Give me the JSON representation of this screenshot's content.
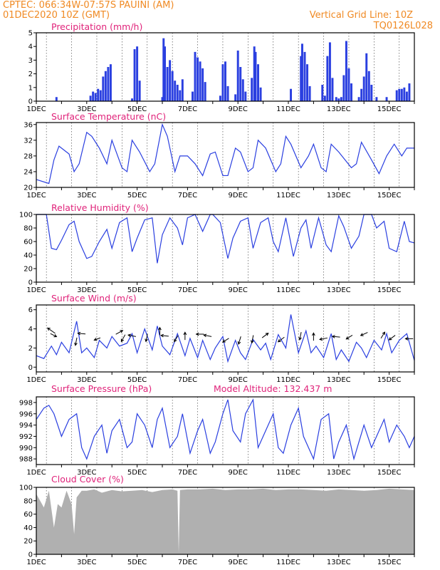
{
  "header": {
    "line1_left": "CPTEC:   066:34W-07:57S   PAUINI (AM)",
    "line2_left": "01DEC2020 10Z (GMT)",
    "line1_right": "Vertical Grid Line: 10Z",
    "line2_right": "TQ0126L028"
  },
  "colors": {
    "header": "#f08a24",
    "title": "#e0237a",
    "line": "#2a3fe0",
    "bar": "#2a3fe0",
    "cloud": "#b0b0b0"
  },
  "x_axis": {
    "labels": [
      "1DEC",
      "3DEC",
      "5DEC",
      "7DEC",
      "9DEC",
      "11DEC",
      "13DEC",
      "15DEC"
    ],
    "days": [
      1,
      3,
      5,
      7,
      9,
      11,
      13,
      15
    ],
    "range": [
      1,
      16
    ]
  },
  "chart_data": [
    {
      "type": "bar",
      "title": "Precipitation (mm/h)",
      "ylim": [
        0,
        5
      ],
      "yticks": [
        0,
        1,
        2,
        3,
        4,
        5
      ],
      "x": [
        1.8,
        3.15,
        3.25,
        3.35,
        3.45,
        3.55,
        3.65,
        3.75,
        3.85,
        3.95,
        4.8,
        4.9,
        5.0,
        5.1,
        6.0,
        6.05,
        6.1,
        6.2,
        6.3,
        6.4,
        6.5,
        6.6,
        6.7,
        6.8,
        7.2,
        7.3,
        7.4,
        7.5,
        7.6,
        7.7,
        8.3,
        8.4,
        8.5,
        8.6,
        8.9,
        9.0,
        9.1,
        9.2,
        9.3,
        9.55,
        9.65,
        9.7,
        9.8,
        9.9,
        11.1,
        11.5,
        11.55,
        11.65,
        11.75,
        11.85,
        12.35,
        12.45,
        12.55,
        12.65,
        12.75,
        12.9,
        13.0,
        13.1,
        13.2,
        13.3,
        13.4,
        13.5,
        13.8,
        13.9,
        14.0,
        14.1,
        14.2,
        14.3,
        14.5,
        14.9,
        15.3,
        15.4,
        15.5,
        15.6,
        15.7,
        15.8
      ],
      "values": [
        0.3,
        0.4,
        0.7,
        0.6,
        0.9,
        0.8,
        1.8,
        2.2,
        2.5,
        2.7,
        0.2,
        3.8,
        4.0,
        1.5,
        0.3,
        4.6,
        4.0,
        2.5,
        3.0,
        2.2,
        1.5,
        1.2,
        0.8,
        1.6,
        0.7,
        3.6,
        3.2,
        2.9,
        2.4,
        1.4,
        0.4,
        2.7,
        2.9,
        1.1,
        0.5,
        3.7,
        2.5,
        1.6,
        0.7,
        1.7,
        4.0,
        3.6,
        2.7,
        1.0,
        0.9,
        3.3,
        4.2,
        3.6,
        2.7,
        1.1,
        1.2,
        0.4,
        3.3,
        4.3,
        1.7,
        0.3,
        0.2,
        0.3,
        1.9,
        4.4,
        2.4,
        1.3,
        0.3,
        0.9,
        1.8,
        3.5,
        2.2,
        1.2,
        0.3,
        0.3,
        0.8,
        0.9,
        0.9,
        1.0,
        0.7,
        1.3
      ]
    },
    {
      "type": "line",
      "title": "Surface Temperature (nC)",
      "ylim": [
        20,
        36.5
      ],
      "yticks": [
        20,
        24,
        28,
        32,
        36
      ],
      "x": [
        1.0,
        1.4,
        1.5,
        1.7,
        1.9,
        2.3,
        2.5,
        2.7,
        3.0,
        3.2,
        3.5,
        3.8,
        4.0,
        4.4,
        4.6,
        4.8,
        5.1,
        5.5,
        5.7,
        6.0,
        6.2,
        6.5,
        6.7,
        7.0,
        7.3,
        7.6,
        7.9,
        8.1,
        8.4,
        8.6,
        8.9,
        9.1,
        9.4,
        9.6,
        9.8,
        10.1,
        10.5,
        10.7,
        10.9,
        11.1,
        11.5,
        11.8,
        12.0,
        12.3,
        12.5,
        12.7,
        13.0,
        13.5,
        13.7,
        13.9,
        14.3,
        14.6,
        14.9,
        15.2,
        15.5,
        15.7,
        16.0
      ],
      "values": [
        22,
        21.2,
        21,
        27,
        30.5,
        28.5,
        24,
        26,
        34,
        33,
        30,
        26,
        32,
        25,
        24,
        32,
        29,
        24,
        26,
        36,
        33,
        24,
        28,
        28,
        26,
        23,
        28.5,
        29,
        23,
        23,
        30,
        29,
        24,
        25,
        32,
        30,
        24,
        26,
        33,
        31,
        25,
        28,
        31,
        25,
        24,
        31,
        29,
        25,
        26,
        31.5,
        27,
        23.5,
        28,
        31,
        28,
        30,
        30
      ]
    },
    {
      "type": "line",
      "title": "Relative Humidity (%)",
      "ylim": [
        0,
        100
      ],
      "yticks": [
        0,
        20,
        40,
        60,
        80,
        100
      ],
      "x": [
        1.0,
        1.4,
        1.6,
        1.8,
        2.0,
        2.3,
        2.5,
        2.7,
        3.0,
        3.2,
        3.5,
        3.8,
        4.0,
        4.3,
        4.6,
        4.8,
        5.0,
        5.3,
        5.6,
        5.8,
        6.0,
        6.3,
        6.6,
        6.8,
        7.0,
        7.3,
        7.6,
        7.9,
        8.0,
        8.3,
        8.6,
        8.8,
        9.1,
        9.4,
        9.6,
        9.9,
        10.2,
        10.4,
        10.6,
        10.9,
        11.2,
        11.5,
        11.7,
        11.9,
        12.2,
        12.5,
        12.7,
        13.0,
        13.2,
        13.5,
        13.8,
        14.0,
        14.3,
        14.5,
        14.8,
        15.0,
        15.3,
        15.6,
        15.8,
        16.0
      ],
      "values": [
        100,
        100,
        50,
        48,
        62,
        85,
        90,
        60,
        35,
        38,
        60,
        78,
        50,
        88,
        95,
        45,
        65,
        92,
        95,
        28,
        70,
        95,
        80,
        55,
        95,
        100,
        75,
        100,
        100,
        88,
        35,
        65,
        90,
        95,
        50,
        88,
        95,
        60,
        45,
        95,
        38,
        80,
        92,
        50,
        95,
        55,
        45,
        98,
        82,
        50,
        68,
        100,
        100,
        80,
        90,
        50,
        45,
        90,
        60,
        58
      ]
    },
    {
      "type": "line",
      "title": "Surface Wind (m/s)",
      "ylim": [
        -0.5,
        6.5
      ],
      "yticks": [
        0,
        2,
        4,
        6
      ],
      "x": [
        1.0,
        1.3,
        1.6,
        1.8,
        2.0,
        2.3,
        2.6,
        2.8,
        3.0,
        3.3,
        3.5,
        3.8,
        4.0,
        4.3,
        4.6,
        4.8,
        5.0,
        5.3,
        5.6,
        5.8,
        6.0,
        6.3,
        6.6,
        6.9,
        7.1,
        7.4,
        7.6,
        7.9,
        8.1,
        8.4,
        8.6,
        8.9,
        9.1,
        9.3,
        9.6,
        9.9,
        10.1,
        10.3,
        10.6,
        10.9,
        11.1,
        11.4,
        11.7,
        11.9,
        12.1,
        12.4,
        12.7,
        12.9,
        13.1,
        13.4,
        13.7,
        13.9,
        14.1,
        14.4,
        14.7,
        14.9,
        15.1,
        15.4,
        15.7,
        16.0
      ],
      "values": [
        1.2,
        0.9,
        2.2,
        1.3,
        2.6,
        1.5,
        4.8,
        1.5,
        2.0,
        1.0,
        2.8,
        2.0,
        3.2,
        2.2,
        2.5,
        3.5,
        1.5,
        4.0,
        1.8,
        4.3,
        2.2,
        1.3,
        3.5,
        1.2,
        3.0,
        1.0,
        2.8,
        0.8,
        2.0,
        3.2,
        0.6,
        2.8,
        1.5,
        0.8,
        2.9,
        1.8,
        2.5,
        0.8,
        3.4,
        2.0,
        5.5,
        1.5,
        3.8,
        1.5,
        2.2,
        1.0,
        3.5,
        0.8,
        1.8,
        0.6,
        2.6,
        2.0,
        1.0,
        2.8,
        1.8,
        3.5,
        1.5,
        2.8,
        3.5,
        0.7
      ],
      "arrows": [
        {
          "day": 1.7,
          "u": -1,
          "v": 0.7
        },
        {
          "day": 1.6,
          "u": 0.8,
          "v": -0.4
        },
        {
          "day": 2.6,
          "u": -0.2,
          "v": -1
        },
        {
          "day": 2.9,
          "u": -1,
          "v": 0.1
        },
        {
          "day": 3.5,
          "u": -0.8,
          "v": -0.3
        },
        {
          "day": 4.2,
          "u": 0.9,
          "v": 0.5
        },
        {
          "day": 4.5,
          "u": -0.5,
          "v": -0.9
        },
        {
          "day": 4.9,
          "u": -1,
          "v": 0.2
        },
        {
          "day": 5.4,
          "u": -0.2,
          "v": -1
        },
        {
          "day": 5.9,
          "u": 0,
          "v": 1
        },
        {
          "day": 6.2,
          "u": -1,
          "v": 0.1
        },
        {
          "day": 6.6,
          "u": -0.5,
          "v": -0.8
        },
        {
          "day": 6.9,
          "u": 0,
          "v": 1
        },
        {
          "day": 7.6,
          "u": -1,
          "v": 0
        },
        {
          "day": 7.9,
          "u": -1,
          "v": 0.2
        },
        {
          "day": 8.6,
          "u": -0.8,
          "v": -0.5
        },
        {
          "day": 9.1,
          "u": -0.3,
          "v": -1
        },
        {
          "day": 9.6,
          "u": -0.2,
          "v": -1
        },
        {
          "day": 10.0,
          "u": 0.8,
          "v": 0.6
        },
        {
          "day": 10.8,
          "u": -0.8,
          "v": -0.6
        },
        {
          "day": 11.5,
          "u": -0.2,
          "v": -1
        },
        {
          "day": 12.0,
          "u": 0,
          "v": 1
        },
        {
          "day": 12.5,
          "u": -1,
          "v": -0.2
        },
        {
          "day": 13.0,
          "u": -1,
          "v": 0.1
        },
        {
          "day": 13.5,
          "u": -0.8,
          "v": -0.5
        },
        {
          "day": 14.1,
          "u": -0.9,
          "v": -0.4
        },
        {
          "day": 14.7,
          "u": 0.5,
          "v": 0.8
        },
        {
          "day": 15.2,
          "u": -0.8,
          "v": -0.6
        },
        {
          "day": 15.9,
          "u": -1,
          "v": 0
        }
      ]
    },
    {
      "type": "line",
      "title": "Surface Pressure (hPa)",
      "subtitle": "Model Altitude: 132.437  m",
      "ylim": [
        987,
        999
      ],
      "yticks": [
        988,
        990,
        992,
        994,
        996,
        998
      ],
      "x": [
        1.0,
        1.3,
        1.5,
        1.7,
        2.0,
        2.3,
        2.6,
        2.8,
        3.0,
        3.3,
        3.6,
        3.8,
        4.0,
        4.3,
        4.6,
        4.8,
        5.0,
        5.3,
        5.6,
        5.8,
        6.0,
        6.3,
        6.6,
        6.8,
        7.1,
        7.4,
        7.6,
        7.9,
        8.1,
        8.4,
        8.6,
        8.8,
        9.1,
        9.3,
        9.6,
        9.8,
        10.1,
        10.4,
        10.6,
        10.8,
        11.1,
        11.4,
        11.6,
        11.8,
        12.0,
        12.3,
        12.6,
        12.8,
        13.0,
        13.3,
        13.6,
        13.8,
        14.0,
        14.3,
        14.6,
        14.8,
        15.0,
        15.3,
        15.6,
        15.8,
        16.0
      ],
      "values": [
        995,
        997,
        997.5,
        996,
        992,
        995,
        996,
        990,
        988,
        992,
        994,
        989,
        993,
        995,
        990,
        991,
        996,
        994,
        990,
        995,
        997,
        990,
        992,
        996,
        989,
        993,
        995,
        989,
        991,
        996,
        998.5,
        993,
        991,
        996,
        998.5,
        990,
        993,
        996,
        990,
        989,
        994,
        997,
        992,
        990,
        988,
        995,
        996,
        988,
        991,
        994,
        988,
        991,
        994,
        990,
        993,
        995,
        991,
        994,
        992,
        990,
        992
      ]
    },
    {
      "type": "area",
      "title": "Cloud Cover (%)",
      "ylim": [
        0,
        100
      ],
      "yticks": [
        0,
        20,
        40,
        60,
        80,
        100
      ],
      "x": [
        1.0,
        1.15,
        1.3,
        1.5,
        1.7,
        1.85,
        2.0,
        2.2,
        2.4,
        2.5,
        2.6,
        2.8,
        3.0,
        3.3,
        3.6,
        4.0,
        4.4,
        4.8,
        5.2,
        5.6,
        6.0,
        6.4,
        6.6,
        6.65,
        6.7,
        7.0,
        7.5,
        8.0,
        8.5,
        9.0,
        9.5,
        10.0,
        10.5,
        11.0,
        11.5,
        12.0,
        12.5,
        13.0,
        13.5,
        14.0,
        14.5,
        15.0,
        15.5,
        16.0
      ],
      "values": [
        90,
        80,
        70,
        95,
        40,
        75,
        70,
        95,
        75,
        30,
        85,
        95,
        95,
        97,
        92,
        96,
        94,
        95,
        96,
        93,
        96,
        97,
        95,
        2,
        96,
        97,
        97,
        98,
        96,
        97,
        97,
        98,
        96,
        97,
        97,
        96,
        95,
        97,
        96,
        95,
        96,
        98,
        97,
        96
      ]
    }
  ]
}
